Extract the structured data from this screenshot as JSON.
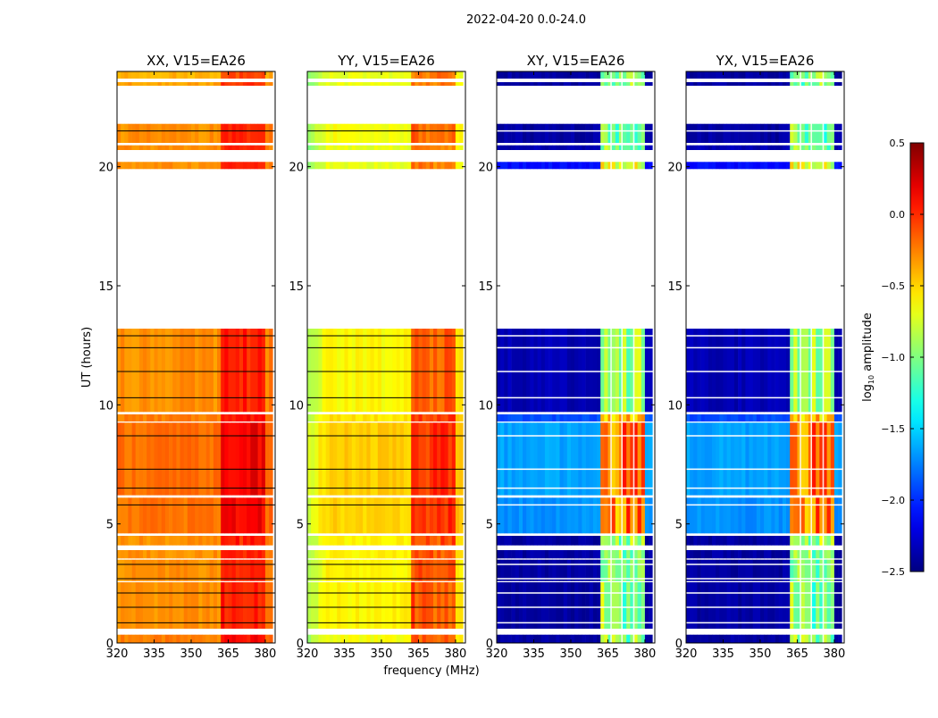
{
  "chart_data": {
    "type": "heatmap",
    "title": "2022-04-20 0.0-24.0",
    "xlabel": "frequency (MHz)",
    "ylabel": "UT (hours)",
    "xlim": [
      320,
      384
    ],
    "ylim": [
      0,
      24
    ],
    "xticks": [
      320,
      335,
      350,
      365,
      380
    ],
    "yticks": [
      0,
      5,
      10,
      15,
      20
    ],
    "colormap": "jet",
    "colorbar": {
      "label_main": "log",
      "label_sub": "10",
      "label_rest": " amplitude",
      "range": [
        -2.5,
        0.5
      ],
      "ticks": [
        "0.5",
        "0.0",
        "−0.5",
        "−1.0",
        "−1.5",
        "−2.0",
        "−2.5"
      ],
      "tick_values": [
        0.5,
        0.0,
        -0.5,
        -1.0,
        -1.5,
        -2.0,
        -2.5
      ]
    },
    "time_segments_hours": [
      [
        0.0,
        0.35
      ],
      [
        0.6,
        2.55
      ],
      [
        2.6,
        3.5
      ],
      [
        3.55,
        3.9
      ],
      [
        4.1,
        4.5
      ],
      [
        4.6,
        6.1
      ],
      [
        6.2,
        9.25
      ],
      [
        9.3,
        9.6
      ],
      [
        9.7,
        13.2
      ],
      [
        19.9,
        20.2
      ],
      [
        20.7,
        20.9
      ],
      [
        21.0,
        21.8
      ],
      [
        23.4,
        23.55
      ],
      [
        23.7,
        24.0
      ]
    ],
    "flag_lines_hours": [
      0.85,
      1.5,
      2.1,
      2.7,
      3.3,
      5.8,
      6.5,
      7.3,
      8.7,
      10.3,
      11.4,
      12.4,
      12.9,
      21.5
    ],
    "rfi_bands_MHz": [
      [
        362,
        366
      ],
      [
        366.6,
        370.4
      ],
      [
        371,
        375.2
      ],
      [
        375.8,
        380
      ]
    ],
    "panels": [
      {
        "title": "XX, V15=EA26",
        "levels": [
          -0.25,
          -0.3,
          -0.3,
          -0.3,
          -0.3,
          -0.22,
          -0.2,
          -0.25,
          -0.3,
          -0.3,
          -0.3,
          -0.3,
          -0.35,
          -0.4
        ],
        "edge_offset": 0.0,
        "rfi_delta": 0.35
      },
      {
        "title": "YY, V15=EA26",
        "levels": [
          -0.65,
          -0.6,
          -0.6,
          -0.6,
          -0.6,
          -0.5,
          -0.48,
          -0.55,
          -0.62,
          -0.7,
          -0.7,
          -0.65,
          -0.7,
          -0.7
        ],
        "edge_offset": -0.3,
        "rfi_delta": 0.5
      },
      {
        "title": "XY, V15=EA26",
        "levels": [
          -2.4,
          -2.4,
          -2.4,
          -2.4,
          -2.4,
          -1.7,
          -1.65,
          -1.9,
          -2.35,
          -2.1,
          -2.35,
          -2.4,
          -2.4,
          -2.4
        ],
        "edge_offset": 0.0,
        "rfi_delta": 1.5
      },
      {
        "title": "YX, V15=EA26",
        "levels": [
          -2.4,
          -2.4,
          -2.4,
          -2.4,
          -2.4,
          -1.7,
          -1.65,
          -1.9,
          -2.35,
          -2.1,
          -2.35,
          -2.4,
          -2.4,
          -2.4
        ],
        "edge_offset": 0.0,
        "rfi_delta": 1.5
      }
    ]
  }
}
